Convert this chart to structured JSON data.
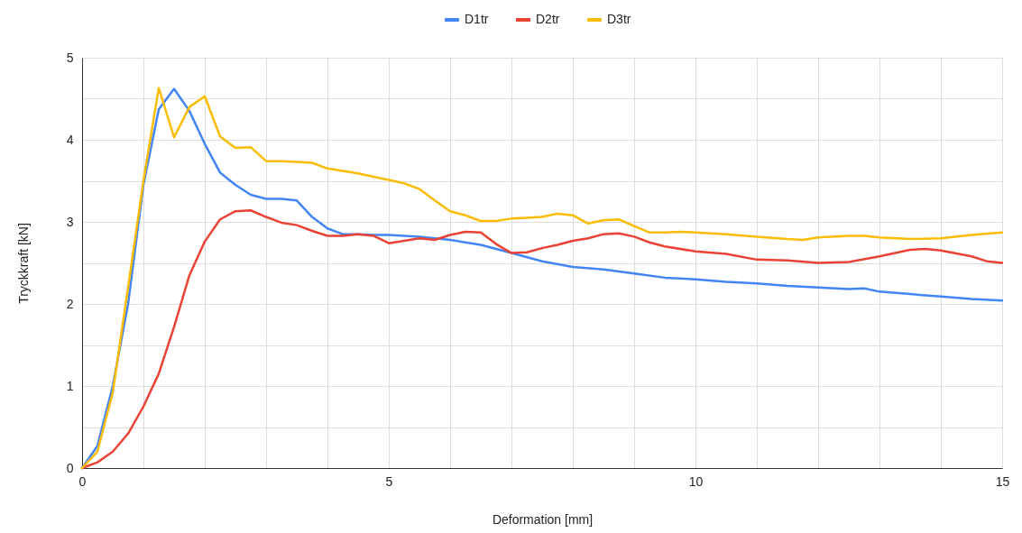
{
  "chart_data": {
    "type": "line",
    "xlabel": "Deformation [mm]",
    "ylabel": "Tryckkraft [kN]",
    "legend": "top",
    "grid": true,
    "marker": "none",
    "line_style": "solid",
    "xlim": [
      0,
      15
    ],
    "ylim": [
      0,
      5
    ],
    "xticks": [
      0,
      {
        "value": 1,
        "label": null
      },
      {
        "value": 2,
        "label": null
      },
      {
        "value": 3,
        "label": null
      },
      {
        "value": 4,
        "label": null
      },
      5,
      {
        "value": 6,
        "label": null
      },
      {
        "value": 7,
        "label": null
      },
      {
        "value": 8,
        "label": null
      },
      {
        "value": 9,
        "label": null
      },
      10,
      {
        "value": 11,
        "label": null
      },
      {
        "value": 12,
        "label": null
      },
      {
        "value": 13,
        "label": null
      },
      {
        "value": 14,
        "label": null
      },
      15
    ],
    "yticks": [
      0,
      {
        "value": 0.5,
        "label": null
      },
      1,
      {
        "value": 1.5,
        "label": null
      },
      2,
      {
        "value": 2.5,
        "label": null
      },
      3,
      {
        "value": 3.5,
        "label": null
      },
      4,
      {
        "value": 4.5,
        "label": null
      },
      5
    ],
    "series": [
      {
        "name": "D1tr",
        "color": "#4285f4",
        "x": [
          0,
          0.25,
          0.5,
          0.75,
          1,
          1.25,
          1.5,
          1.75,
          2,
          2.25,
          2.5,
          2.75,
          3,
          3.25,
          3.5,
          3.75,
          4,
          4.25,
          4.5,
          4.75,
          5,
          5.5,
          6,
          6.5,
          7,
          7.5,
          8,
          8.5,
          9,
          9.5,
          10,
          10.5,
          11,
          11.5,
          12,
          12.5,
          12.75,
          13,
          13.5,
          14,
          14.5,
          15
        ],
        "values": [
          0,
          0.27,
          1.0,
          2.0,
          3.45,
          4.37,
          4.62,
          4.35,
          3.95,
          3.6,
          3.45,
          3.33,
          3.28,
          3.28,
          3.26,
          3.06,
          2.92,
          2.85,
          2.85,
          2.84,
          2.84,
          2.82,
          2.78,
          2.72,
          2.62,
          2.52,
          2.45,
          2.42,
          2.37,
          2.32,
          2.3,
          2.27,
          2.25,
          2.22,
          2.2,
          2.18,
          2.19,
          2.15,
          2.12,
          2.09,
          2.06,
          2.04
        ]
      },
      {
        "name": "D2tr",
        "color": "#ea4335",
        "x": [
          0,
          0.25,
          0.5,
          0.75,
          1,
          1.25,
          1.5,
          1.75,
          2,
          2.25,
          2.5,
          2.75,
          3,
          3.25,
          3.5,
          3.75,
          4,
          4.25,
          4.5,
          4.75,
          5,
          5.25,
          5.5,
          5.75,
          6,
          6.25,
          6.5,
          6.75,
          7,
          7.25,
          7.5,
          7.75,
          8,
          8.25,
          8.5,
          8.75,
          9,
          9.25,
          9.5,
          10,
          10.5,
          11,
          11.5,
          12,
          12.5,
          13,
          13.5,
          13.75,
          14,
          14.5,
          14.75,
          15
        ],
        "values": [
          0,
          0.07,
          0.2,
          0.42,
          0.75,
          1.15,
          1.72,
          2.35,
          2.76,
          3.03,
          3.13,
          3.14,
          3.06,
          2.99,
          2.96,
          2.89,
          2.83,
          2.83,
          2.85,
          2.83,
          2.74,
          2.77,
          2.8,
          2.78,
          2.84,
          2.88,
          2.87,
          2.73,
          2.62,
          2.63,
          2.68,
          2.72,
          2.77,
          2.8,
          2.85,
          2.86,
          2.82,
          2.75,
          2.7,
          2.64,
          2.61,
          2.54,
          2.53,
          2.5,
          2.51,
          2.58,
          2.66,
          2.67,
          2.65,
          2.58,
          2.52,
          2.5
        ]
      },
      {
        "name": "D3tr",
        "color": "#fbbc04",
        "x": [
          0,
          0.25,
          0.5,
          0.75,
          1,
          1.25,
          1.5,
          1.75,
          2,
          2.25,
          2.5,
          2.75,
          3,
          3.25,
          3.5,
          3.75,
          4,
          4.25,
          4.5,
          4.75,
          5,
          5.25,
          5.5,
          5.75,
          6,
          6.25,
          6.5,
          6.75,
          7,
          7.25,
          7.5,
          7.75,
          8,
          8.25,
          8.5,
          8.75,
          9,
          9.25,
          9.5,
          9.75,
          10,
          10.5,
          11,
          11.5,
          11.75,
          12,
          12.5,
          12.75,
          13,
          13.5,
          14,
          14.5,
          15
        ],
        "values": [
          0,
          0.2,
          0.92,
          2.2,
          3.5,
          4.63,
          4.03,
          4.4,
          4.53,
          4.04,
          3.9,
          3.91,
          3.74,
          3.74,
          3.73,
          3.72,
          3.65,
          3.62,
          3.59,
          3.55,
          3.51,
          3.47,
          3.4,
          3.26,
          3.13,
          3.08,
          3.01,
          3.01,
          3.04,
          3.05,
          3.06,
          3.1,
          3.08,
          2.98,
          3.02,
          3.03,
          2.95,
          2.87,
          2.87,
          2.88,
          2.87,
          2.85,
          2.82,
          2.79,
          2.78,
          2.81,
          2.83,
          2.83,
          2.81,
          2.79,
          2.8,
          2.84,
          2.87
        ]
      }
    ]
  }
}
